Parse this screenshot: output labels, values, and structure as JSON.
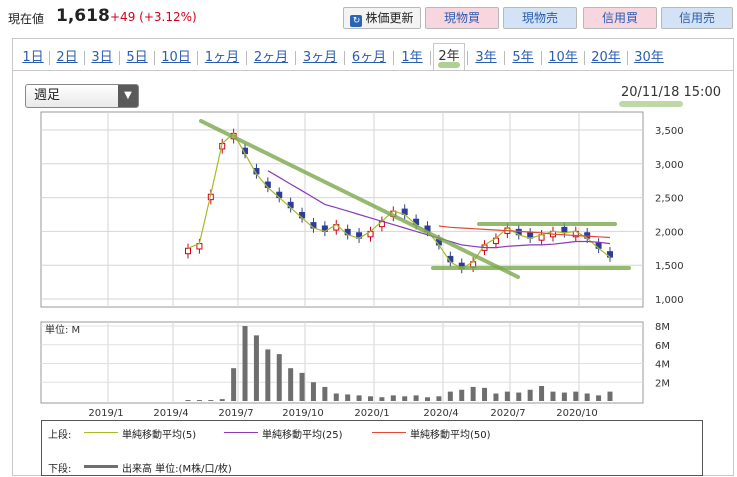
{
  "quote": {
    "label": "現在値",
    "price": "1,618",
    "change": "+49 (+3.12%)"
  },
  "buttons": {
    "update": "株価更新",
    "buy": "現物買",
    "sell": "現物売",
    "margin_buy": "信用買",
    "margin_sell": "信用売"
  },
  "tabs": [
    "1日",
    "2日",
    "3日",
    "5日",
    "10日",
    "1ヶ月",
    "2ヶ月",
    "3ヶ月",
    "6ヶ月",
    "1年",
    "2年",
    "3年",
    "5年",
    "10年",
    "20年",
    "30年"
  ],
  "active_tab": "2年",
  "period_select": {
    "value": "週足"
  },
  "datetime": "20/11/18 15:00",
  "colors": {
    "up": "#d0021b",
    "down": "#2d3e9a",
    "ma5": "#a8b92a",
    "ma25": "#8a3bb8",
    "ma50": "#e04a3a",
    "volume": "#6e6e6e",
    "annotation": "#7aa84a"
  },
  "chart_data": [
    {
      "type": "candlestick",
      "x_tick_labels": [
        "2019/1",
        "2019/4",
        "2019/7",
        "2019/10",
        "2020/1",
        "2020/4",
        "2020/7",
        "2020/10"
      ],
      "y_tick_labels": [
        "3,500",
        "3,000",
        "2,500",
        "2,000",
        "1,500",
        "1,000"
      ],
      "ylim": [
        1000,
        3500
      ],
      "grid": true,
      "series": [
        {
          "name": "単純移動平均(5)",
          "values": [
            1750,
            1820,
            2550,
            3300,
            3450,
            3150,
            2850,
            2650,
            2500,
            2350,
            2200,
            2050,
            2000,
            2100,
            1950,
            1900,
            2000,
            2150,
            2300,
            2250,
            2100,
            2000,
            1800,
            1550,
            1450,
            1550,
            1800,
            1900,
            2050,
            1950,
            1900,
            1950,
            2000,
            1980,
            2000,
            1900,
            1750,
            1620
          ]
        },
        {
          "name": "単純移動平均(25)",
          "values": [
            null,
            null,
            null,
            null,
            null,
            null,
            null,
            2900,
            2800,
            2700,
            2600,
            2500,
            2400,
            2350,
            2300,
            2250,
            2200,
            2150,
            2100,
            2050,
            2000,
            1950,
            1900,
            1850,
            1800,
            1780,
            1760,
            1760,
            1780,
            1790,
            1800,
            1800,
            1810,
            1830,
            1850,
            1850,
            1840,
            1820
          ]
        },
        {
          "name": "単純移動平均(50)",
          "values": [
            null,
            null,
            null,
            null,
            null,
            null,
            null,
            null,
            null,
            null,
            null,
            null,
            null,
            null,
            null,
            null,
            null,
            null,
            null,
            null,
            null,
            null,
            2080,
            2060,
            2050,
            2040,
            2030,
            2020,
            2010,
            2000,
            1990,
            1980,
            1960,
            1950,
            1940,
            1930,
            1920,
            1910
          ]
        }
      ]
    },
    {
      "type": "bar",
      "title": "単位: M",
      "y_tick_labels": [
        "8M",
        "6M",
        "4M",
        "2M"
      ],
      "ylim": [
        0,
        8
      ],
      "series": [
        {
          "name": "出来高",
          "values": [
            0.1,
            0.1,
            0.1,
            0.2,
            3.5,
            8.0,
            7.0,
            5.5,
            5.0,
            3.5,
            3.0,
            2.0,
            1.5,
            0.8,
            0.7,
            0.6,
            0.5,
            0.4,
            0.6,
            0.5,
            0.6,
            0.4,
            0.5,
            1.0,
            1.2,
            1.5,
            1.4,
            0.8,
            1.0,
            0.9,
            1.2,
            1.6,
            1.0,
            0.9,
            1.0,
            0.8,
            0.6,
            1.0
          ]
        }
      ]
    }
  ],
  "legend": {
    "upper_label": "上段:",
    "lower_label": "下段:",
    "ma5": "単純移動平均(5)",
    "ma25": "単純移動平均(25)",
    "ma50": "単純移動平均(50)",
    "volume": "出来高 単位:(M株/口/枚)"
  }
}
